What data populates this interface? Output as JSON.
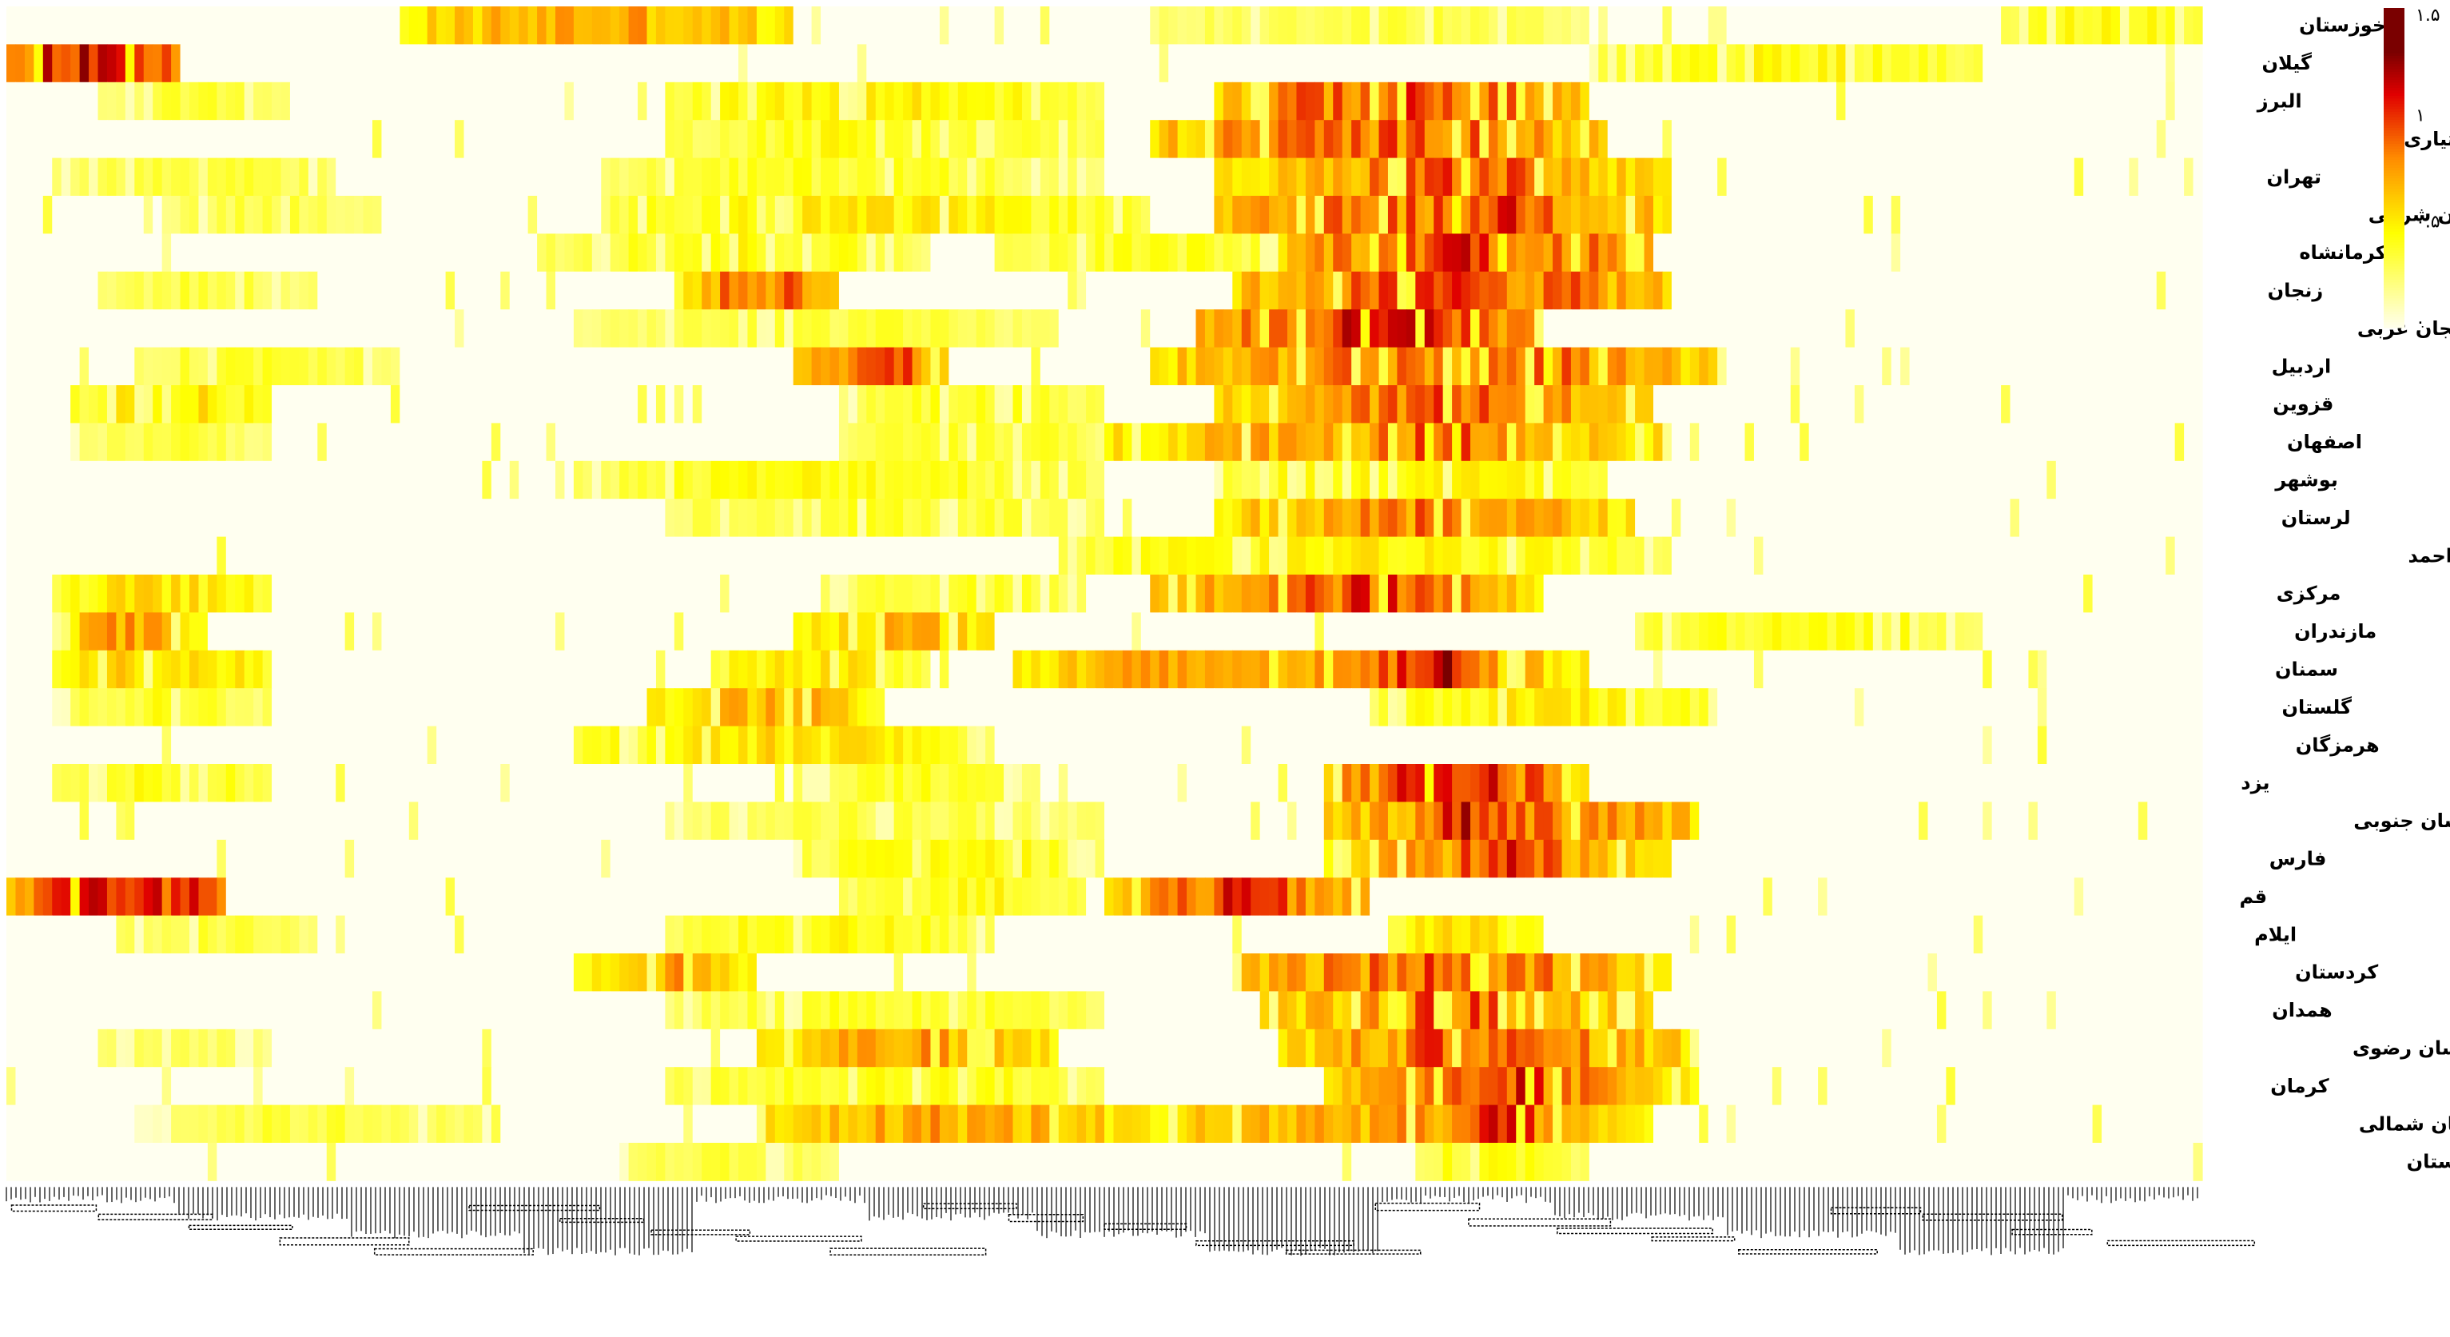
{
  "chart_data": {
    "type": "heatmap",
    "title": "",
    "xlabel": "",
    "ylabel": "",
    "rows": [
      {
        "label": "خوزستان",
        "hot": [
          [
            0.18,
            0.36,
            0.75
          ],
          [
            0.52,
            0.72,
            0.35
          ],
          [
            0.91,
            1.0,
            0.45
          ]
        ]
      },
      {
        "label": "گیلان",
        "hot": [
          [
            0.0,
            0.08,
            1.15
          ],
          [
            0.72,
            0.9,
            0.45
          ]
        ]
      },
      {
        "label": "البرز",
        "hot": [
          [
            0.04,
            0.13,
            0.35
          ],
          [
            0.3,
            0.5,
            0.5
          ],
          [
            0.55,
            0.72,
            0.95
          ],
          [
            0.6,
            0.7,
            0.9
          ]
        ]
      },
      {
        "label": "چهارمحال و بختیاری",
        "hot": [
          [
            0.3,
            0.5,
            0.45
          ],
          [
            0.52,
            0.73,
            0.9
          ],
          [
            0.62,
            0.7,
            0.95
          ]
        ]
      },
      {
        "label": "تهران",
        "hot": [
          [
            0.02,
            0.15,
            0.4
          ],
          [
            0.27,
            0.5,
            0.4
          ],
          [
            0.55,
            0.76,
            0.75
          ],
          [
            0.6,
            0.72,
            0.95
          ]
        ]
      },
      {
        "label": "آذربایجان شرقی",
        "hot": [
          [
            0.07,
            0.17,
            0.35
          ],
          [
            0.27,
            0.52,
            0.5
          ],
          [
            0.55,
            0.76,
            0.9
          ],
          [
            0.64,
            0.72,
            1.05
          ]
        ]
      },
      {
        "label": "کرمانشاه",
        "hot": [
          [
            0.24,
            0.42,
            0.45
          ],
          [
            0.45,
            0.6,
            0.4
          ],
          [
            0.58,
            0.75,
            1.0
          ],
          [
            0.62,
            0.7,
            1.1
          ]
        ]
      },
      {
        "label": "زنجان",
        "hot": [
          [
            0.04,
            0.14,
            0.35
          ],
          [
            0.31,
            0.38,
            0.9
          ],
          [
            0.56,
            0.76,
            0.95
          ],
          [
            0.64,
            0.7,
            1.05
          ]
        ]
      },
      {
        "label": "آذربایجان غربی",
        "hot": [
          [
            0.26,
            0.48,
            0.35
          ],
          [
            0.54,
            0.7,
            1.0
          ],
          [
            0.58,
            0.68,
            1.1
          ]
        ]
      },
      {
        "label": "اردبیل",
        "hot": [
          [
            0.06,
            0.18,
            0.4
          ],
          [
            0.36,
            0.43,
            1.0
          ],
          [
            0.52,
            0.78,
            0.85
          ],
          [
            0.66,
            0.73,
            0.95
          ]
        ]
      },
      {
        "label": "قزوین",
        "hot": [
          [
            0.03,
            0.12,
            0.55
          ],
          [
            0.38,
            0.5,
            0.4
          ],
          [
            0.55,
            0.75,
            0.85
          ],
          [
            0.6,
            0.72,
            0.95
          ]
        ]
      },
      {
        "label": "اصفهان",
        "hot": [
          [
            0.03,
            0.12,
            0.35
          ],
          [
            0.38,
            0.5,
            0.4
          ],
          [
            0.5,
            0.76,
            0.8
          ],
          [
            0.62,
            0.7,
            1.0
          ]
        ]
      },
      {
        "label": "بوشهر",
        "hot": [
          [
            0.26,
            0.5,
            0.45
          ],
          [
            0.55,
            0.73,
            0.5
          ]
        ]
      },
      {
        "label": "لرستان",
        "hot": [
          [
            0.3,
            0.5,
            0.4
          ],
          [
            0.55,
            0.74,
            0.8
          ],
          [
            0.62,
            0.7,
            0.9
          ]
        ]
      },
      {
        "label": "کهگیلویه و بویر احمد",
        "hot": [
          [
            0.48,
            0.76,
            0.5
          ]
        ]
      },
      {
        "label": "مرکزی",
        "hot": [
          [
            0.02,
            0.12,
            0.55
          ],
          [
            0.37,
            0.49,
            0.4
          ],
          [
            0.52,
            0.7,
            0.9
          ],
          [
            0.58,
            0.66,
            1.0
          ]
        ]
      },
      {
        "label": "مازندران",
        "hot": [
          [
            0.02,
            0.09,
            0.75
          ],
          [
            0.36,
            0.45,
            0.7
          ],
          [
            0.74,
            0.9,
            0.45
          ]
        ]
      },
      {
        "label": "سمنان",
        "hot": [
          [
            0.02,
            0.12,
            0.6
          ],
          [
            0.32,
            0.42,
            0.55
          ],
          [
            0.46,
            0.72,
            0.8
          ],
          [
            0.62,
            0.68,
            1.2
          ]
        ]
      },
      {
        "label": "گلستان",
        "hot": [
          [
            0.02,
            0.12,
            0.4
          ],
          [
            0.29,
            0.4,
            0.7
          ],
          [
            0.62,
            0.78,
            0.5
          ]
        ]
      },
      {
        "label": "هرمزگان",
        "hot": [
          [
            0.26,
            0.45,
            0.55
          ]
        ]
      },
      {
        "label": "یزد",
        "hot": [
          [
            0.02,
            0.12,
            0.45
          ],
          [
            0.36,
            0.47,
            0.4
          ],
          [
            0.6,
            0.72,
            1.0
          ],
          [
            0.62,
            0.7,
            1.15
          ]
        ]
      },
      {
        "label": "خراسان جنوبی",
        "hot": [
          [
            0.3,
            0.5,
            0.35
          ],
          [
            0.6,
            0.77,
            0.9
          ],
          [
            0.64,
            0.7,
            1.1
          ]
        ]
      },
      {
        "label": "فارس",
        "hot": [
          [
            0.36,
            0.5,
            0.45
          ],
          [
            0.6,
            0.76,
            0.8
          ],
          [
            0.65,
            0.72,
            1.05
          ]
        ]
      },
      {
        "label": "قم",
        "hot": [
          [
            0.0,
            0.1,
            1.2
          ],
          [
            0.38,
            0.49,
            0.45
          ],
          [
            0.5,
            0.62,
            0.95
          ],
          [
            0.52,
            0.6,
            1.0
          ]
        ]
      },
      {
        "label": "ایلام",
        "hot": [
          [
            0.05,
            0.14,
            0.35
          ],
          [
            0.3,
            0.45,
            0.45
          ],
          [
            0.63,
            0.7,
            0.55
          ]
        ]
      },
      {
        "label": "کردستان",
        "hot": [
          [
            0.26,
            0.34,
            0.75
          ],
          [
            0.56,
            0.76,
            0.9
          ],
          [
            0.62,
            0.68,
            1.05
          ]
        ]
      },
      {
        "label": "همدان",
        "hot": [
          [
            0.3,
            0.5,
            0.4
          ],
          [
            0.57,
            0.75,
            0.8
          ],
          [
            0.62,
            0.7,
            0.95
          ]
        ]
      },
      {
        "label": "خراسان رضوی",
        "hot": [
          [
            0.04,
            0.12,
            0.3
          ],
          [
            0.34,
            0.48,
            0.75
          ],
          [
            0.58,
            0.77,
            0.85
          ],
          [
            0.63,
            0.7,
            1.0
          ]
        ]
      },
      {
        "label": "کرمان",
        "hot": [
          [
            0.3,
            0.5,
            0.45
          ],
          [
            0.6,
            0.77,
            0.85
          ],
          [
            0.66,
            0.71,
            1.05
          ]
        ]
      },
      {
        "label": "خراسان شمالی",
        "hot": [
          [
            0.06,
            0.22,
            0.35
          ],
          [
            0.34,
            0.52,
            0.75
          ],
          [
            0.51,
            0.75,
            0.75
          ],
          [
            0.65,
            0.71,
            1.0
          ]
        ]
      },
      {
        "label": "سیستان و بلوچستان",
        "hot": [
          [
            0.28,
            0.38,
            0.35
          ],
          [
            0.64,
            0.72,
            0.45
          ]
        ]
      }
    ],
    "colorbar": {
      "ticks": [
        {
          "value": 0,
          "label": "۰"
        },
        {
          "value": 0.5,
          "label": "۰.۵"
        },
        {
          "value": 1,
          "label": "۱"
        },
        {
          "value": 1.5,
          "label": "۱.۵"
        }
      ],
      "range": [
        0,
        1.5
      ]
    },
    "colors": {
      "low": "#fffff0",
      "mid": "#ffff00",
      "orange": "#ff8c00",
      "high": "#e00000",
      "max": "#7a0000"
    }
  }
}
